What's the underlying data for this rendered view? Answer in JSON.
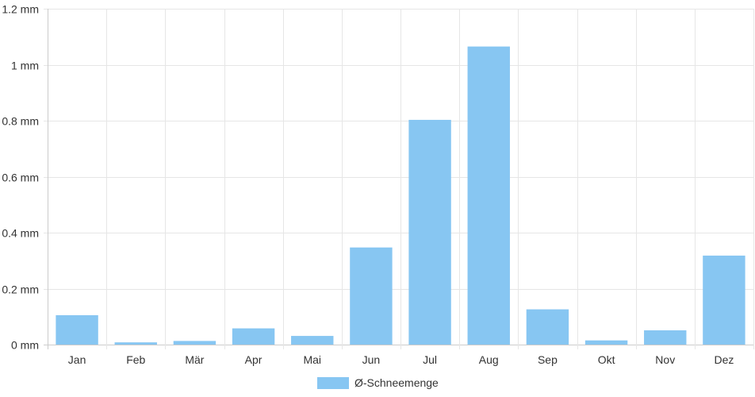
{
  "chart_data": {
    "type": "bar",
    "categories": [
      "Jan",
      "Feb",
      "Mär",
      "Apr",
      "Mai",
      "Jun",
      "Jul",
      "Aug",
      "Sep",
      "Okt",
      "Nov",
      "Dez"
    ],
    "series": [
      {
        "name": "Ø-Schneemenge",
        "values": [
          0.105,
          0.008,
          0.013,
          0.058,
          0.031,
          0.347,
          0.803,
          1.065,
          0.126,
          0.015,
          0.051,
          0.318
        ]
      }
    ],
    "y_ticks": [
      "0 mm",
      "0.2 mm",
      "0.4 mm",
      "0.6 mm",
      "0.8 mm",
      "1 mm",
      "1.2 mm"
    ],
    "ylim": [
      0,
      1.2
    ],
    "grid": true,
    "legend_position": "bottom-center",
    "bar_color": "#87c6f2"
  }
}
